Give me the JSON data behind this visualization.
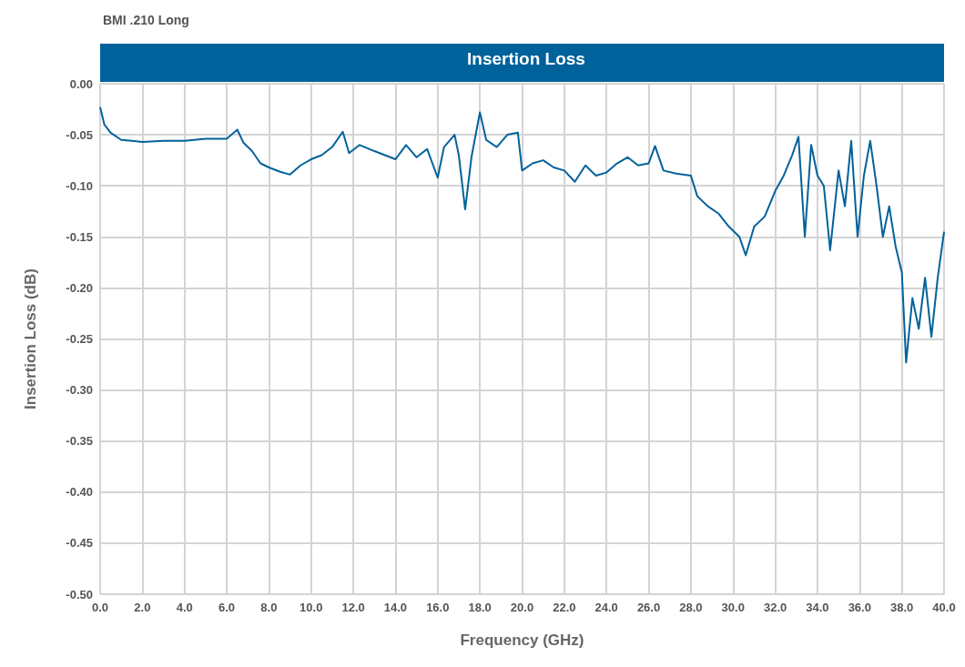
{
  "chart_data": {
    "type": "line",
    "title": "Insertion Loss",
    "subtitle": "BMI .210 Long",
    "xlabel": "Frequency (GHz)",
    "ylabel": "Insertion Loss (dB)",
    "color": "#00629b",
    "x": [
      0,
      0.2,
      0.5,
      1,
      1.5,
      2,
      3,
      4,
      5,
      6,
      6.5,
      6.8,
      7.2,
      7.6,
      8,
      8.5,
      9,
      9.5,
      10,
      10.5,
      11,
      11.5,
      11.8,
      12.3,
      13,
      13.5,
      14,
      14.5,
      15,
      15.5,
      16,
      16.3,
      16.8,
      17.0,
      17.3,
      17.6,
      18.0,
      18.3,
      18.8,
      19.3,
      19.8,
      20,
      20.5,
      21,
      21.5,
      22,
      22.5,
      23,
      23.5,
      24,
      24.5,
      25,
      25.5,
      26,
      26.3,
      26.7,
      27.3,
      28,
      28.3,
      28.8,
      29.3,
      29.8,
      30.3,
      30.6,
      31,
      31.5,
      32,
      32.4,
      32.8,
      33.1,
      33.4,
      33.7,
      34,
      34.3,
      34.6,
      35,
      35.3,
      35.6,
      35.9,
      36.2,
      36.5,
      36.8,
      37.1,
      37.4,
      37.7,
      38,
      38.2,
      38.5,
      38.8,
      39.1,
      39.4,
      39.7,
      40
    ],
    "values": [
      -0.023,
      -0.04,
      -0.048,
      -0.055,
      -0.056,
      -0.057,
      -0.056,
      -0.056,
      -0.054,
      -0.054,
      -0.045,
      -0.058,
      -0.066,
      -0.078,
      -0.082,
      -0.086,
      -0.089,
      -0.08,
      -0.074,
      -0.07,
      -0.062,
      -0.047,
      -0.068,
      -0.06,
      -0.066,
      -0.07,
      -0.074,
      -0.06,
      -0.072,
      -0.064,
      -0.092,
      -0.062,
      -0.05,
      -0.07,
      -0.123,
      -0.072,
      -0.028,
      -0.055,
      -0.062,
      -0.05,
      -0.048,
      -0.085,
      -0.078,
      -0.075,
      -0.082,
      -0.085,
      -0.096,
      -0.08,
      -0.09,
      -0.087,
      -0.078,
      -0.072,
      -0.08,
      -0.078,
      -0.061,
      -0.085,
      -0.088,
      -0.09,
      -0.11,
      -0.12,
      -0.127,
      -0.14,
      -0.15,
      -0.168,
      -0.14,
      -0.13,
      -0.105,
      -0.09,
      -0.07,
      -0.052,
      -0.15,
      -0.06,
      -0.09,
      -0.1,
      -0.163,
      -0.085,
      -0.12,
      -0.056,
      -0.15,
      -0.09,
      -0.056,
      -0.1,
      -0.15,
      -0.12,
      -0.159,
      -0.185,
      -0.273,
      -0.21,
      -0.24,
      -0.19,
      -0.248,
      -0.19,
      -0.145
    ],
    "xlim": [
      0,
      40
    ],
    "xticks": [
      {
        "value": 0,
        "label": "0.0"
      },
      {
        "value": 2,
        "label": "2.0"
      },
      {
        "value": 4,
        "label": "4.0"
      },
      {
        "value": 6,
        "label": "6.0"
      },
      {
        "value": 8,
        "label": "8.0"
      },
      {
        "value": 10,
        "label": "10.0"
      },
      {
        "value": 12,
        "label": "12.0"
      },
      {
        "value": 14,
        "label": "14.0"
      },
      {
        "value": 16,
        "label": "16.0"
      },
      {
        "value": 18,
        "label": "18.0"
      },
      {
        "value": 20,
        "label": "20.0"
      },
      {
        "value": 22,
        "label": "22.0"
      },
      {
        "value": 24,
        "label": "24.0"
      },
      {
        "value": 26,
        "label": "26.0"
      },
      {
        "value": 28,
        "label": "28.0"
      },
      {
        "value": 30,
        "label": "30.0"
      },
      {
        "value": 32,
        "label": "32.0"
      },
      {
        "value": 34,
        "label": "34.0"
      },
      {
        "value": 36,
        "label": "36.0"
      },
      {
        "value": 38,
        "label": "38.0"
      },
      {
        "value": 40,
        "label": "40.0"
      }
    ],
    "ylim": [
      -0.5,
      0
    ],
    "yticks": [
      {
        "value": -0.5,
        "label": "-0.50"
      },
      {
        "value": -0.45,
        "label": "-0.45"
      },
      {
        "value": -0.4,
        "label": "-0.40"
      },
      {
        "value": -0.35,
        "label": "-0.35"
      },
      {
        "value": -0.3,
        "label": "-0.30"
      },
      {
        "value": -0.25,
        "label": "-0.25"
      },
      {
        "value": -0.2,
        "label": "-0.20"
      },
      {
        "value": -0.15,
        "label": "-0.15"
      },
      {
        "value": -0.1,
        "label": "-0.10"
      },
      {
        "value": -0.05,
        "label": "-0.05"
      },
      {
        "value": 0,
        "label": "0.00"
      }
    ],
    "grid": true,
    "marker": "none",
    "line_style": "solid"
  }
}
